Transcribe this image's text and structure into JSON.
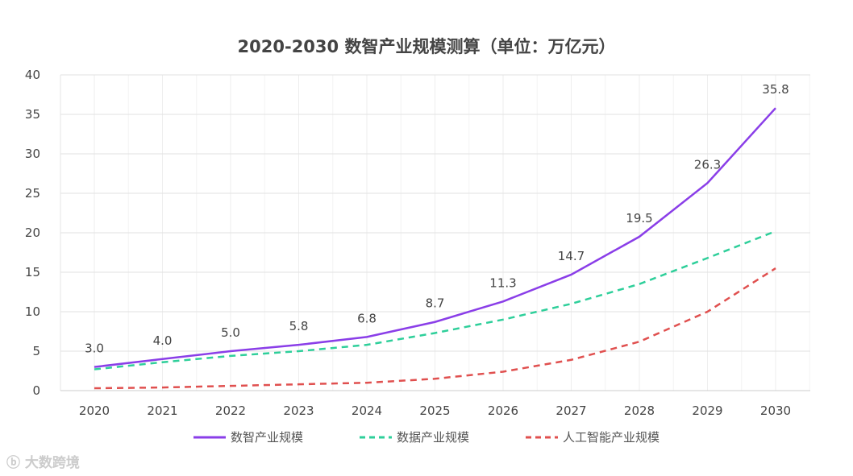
{
  "chart_data": {
    "type": "line",
    "title": "2020-2030 数智产业规模测算（单位：万亿元）",
    "categories": [
      "2020",
      "2021",
      "2022",
      "2023",
      "2024",
      "2025",
      "2026",
      "2027",
      "2028",
      "2029",
      "2030"
    ],
    "ylim": [
      0,
      40
    ],
    "yticks": [
      0,
      5,
      10,
      15,
      20,
      25,
      30,
      35,
      40
    ],
    "grid": true,
    "legend_position": "bottom",
    "series": [
      {
        "name": "数智产业规模",
        "color": "#8a3ee8",
        "dash": "solid",
        "labels": true,
        "values": [
          3.0,
          4.0,
          5.0,
          5.8,
          6.8,
          8.7,
          11.3,
          14.7,
          19.5,
          26.3,
          35.8
        ]
      },
      {
        "name": "数据产业规模",
        "color": "#2ecf9a",
        "dash": "dashed",
        "labels": false,
        "values": [
          2.7,
          3.6,
          4.4,
          5.0,
          5.8,
          7.3,
          9.0,
          11.0,
          13.5,
          16.8,
          20.2
        ]
      },
      {
        "name": "人工智能产业规模",
        "color": "#e0504f",
        "dash": "dashed",
        "labels": false,
        "values": [
          0.3,
          0.4,
          0.6,
          0.8,
          1.0,
          1.5,
          2.4,
          3.9,
          6.2,
          10.0,
          15.5
        ]
      }
    ]
  },
  "watermark": "大数跨境"
}
